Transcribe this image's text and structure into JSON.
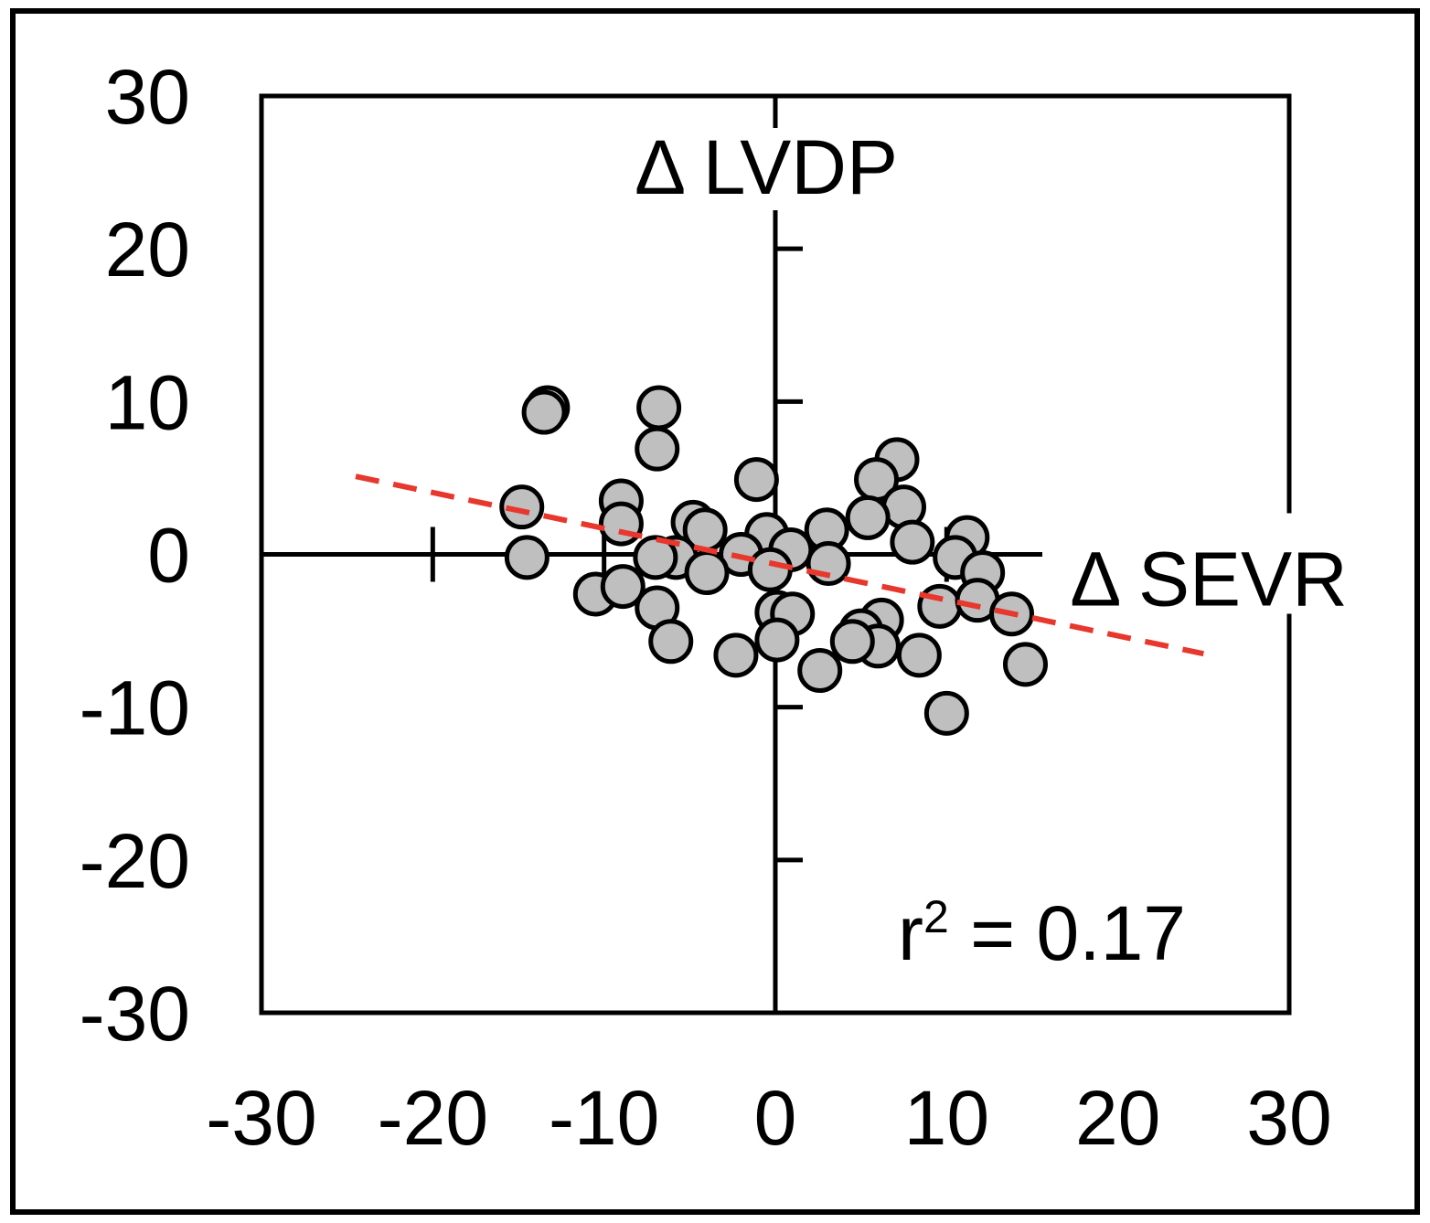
{
  "chart_data": {
    "type": "scatter",
    "title": "",
    "xlabel": "Δ SEVR",
    "ylabel": "Δ LVDP",
    "xlim": [
      -30,
      30
    ],
    "ylim": [
      -30,
      30
    ],
    "xticks": [
      "-30",
      "-20",
      "-10",
      "0",
      "10",
      "20",
      "30"
    ],
    "yticks": [
      "30",
      "20",
      "10",
      "0",
      "-10",
      "-20",
      "-30"
    ],
    "xtick_values": [
      -30,
      -20,
      -10,
      0,
      10,
      20,
      30
    ],
    "ytick_values": [
      30,
      20,
      10,
      0,
      -10,
      -20,
      -30
    ],
    "inner_axis_ticks_x": [
      -20,
      -10,
      10,
      20
    ],
    "inner_axis_ticks_y": [
      -20,
      -10,
      10,
      20
    ],
    "grid": false,
    "points": [
      {
        "x": -13.3,
        "y": 9.6
      },
      {
        "x": -13.5,
        "y": 9.3
      },
      {
        "x": -6.8,
        "y": 9.6
      },
      {
        "x": -6.9,
        "y": 6.9
      },
      {
        "x": -1.1,
        "y": 4.9
      },
      {
        "x": 7.1,
        "y": 6.2
      },
      {
        "x": 5.9,
        "y": 4.9
      },
      {
        "x": 7.5,
        "y": 3.1
      },
      {
        "x": 5.4,
        "y": 2.4
      },
      {
        "x": -9.0,
        "y": 3.5
      },
      {
        "x": -9.0,
        "y": 2.0
      },
      {
        "x": -14.8,
        "y": 3.1
      },
      {
        "x": -4.8,
        "y": 2.1
      },
      {
        "x": -4.1,
        "y": 1.6
      },
      {
        "x": -0.5,
        "y": 1.3
      },
      {
        "x": 3.0,
        "y": 1.6
      },
      {
        "x": 8.0,
        "y": 0.8
      },
      {
        "x": 11.2,
        "y": 1.1
      },
      {
        "x": -14.5,
        "y": -0.2
      },
      {
        "x": -5.8,
        "y": -0.2
      },
      {
        "x": -7.0,
        "y": -0.2
      },
      {
        "x": -2.0,
        "y": 0.0
      },
      {
        "x": 0.9,
        "y": 0.3
      },
      {
        "x": 3.1,
        "y": -0.6
      },
      {
        "x": 10.5,
        "y": -0.2
      },
      {
        "x": 12.1,
        "y": -1.2
      },
      {
        "x": -4.0,
        "y": -1.2
      },
      {
        "x": -0.3,
        "y": -1.0
      },
      {
        "x": -10.5,
        "y": -2.6
      },
      {
        "x": -8.9,
        "y": -2.1
      },
      {
        "x": -6.9,
        "y": -3.5
      },
      {
        "x": 9.6,
        "y": -3.4
      },
      {
        "x": 11.8,
        "y": -3.0
      },
      {
        "x": 13.8,
        "y": -3.9
      },
      {
        "x": 0.1,
        "y": -3.8
      },
      {
        "x": 1.0,
        "y": -3.9
      },
      {
        "x": 6.2,
        "y": -4.3
      },
      {
        "x": 5.0,
        "y": -5.0
      },
      {
        "x": 6.0,
        "y": -6.0
      },
      {
        "x": 4.5,
        "y": -5.7
      },
      {
        "x": 0.1,
        "y": -5.6
      },
      {
        "x": -6.1,
        "y": -5.7
      },
      {
        "x": -2.3,
        "y": -6.6
      },
      {
        "x": 2.6,
        "y": -7.6
      },
      {
        "x": 8.4,
        "y": -6.6
      },
      {
        "x": 14.6,
        "y": -7.2
      },
      {
        "x": 10.0,
        "y": -10.4
      }
    ],
    "trendline": {
      "x": [
        -24.5,
        25.0
      ],
      "y": [
        5.1,
        -6.5
      ],
      "style": "dashed",
      "color": "#e8372c"
    },
    "annotation": {
      "base": "r",
      "superscript": "2",
      "rest": " = 0.17"
    },
    "colors": {
      "point_fill": "#bfbfbf",
      "point_stroke": "#000000",
      "axis": "#000000"
    }
  }
}
